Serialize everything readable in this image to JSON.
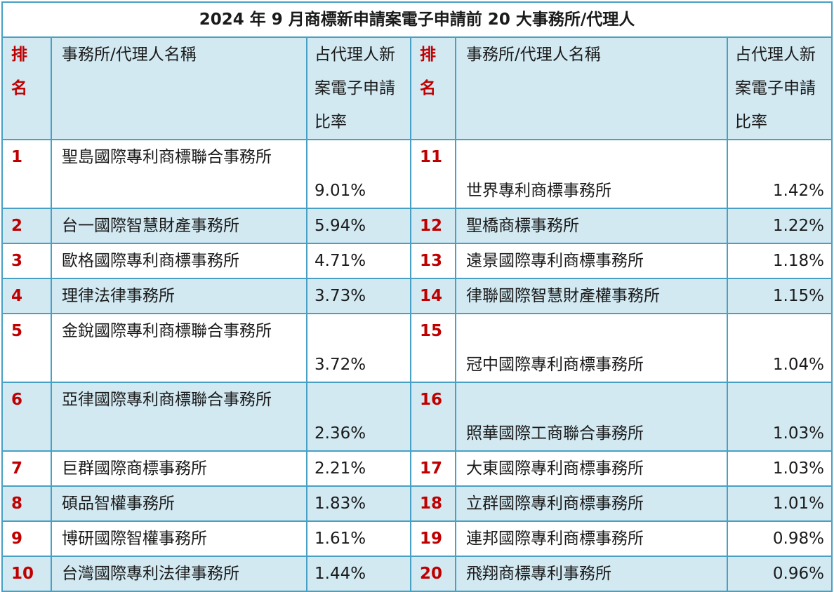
{
  "title": "2024 年 9 月商標新申請案電子申請前 20 大事務所/代理人",
  "headers": {
    "rank": "排名",
    "name": "事務所/代理人名稱",
    "ratio": "占代理人新案電子申請比率"
  },
  "left": [
    {
      "rank": "1",
      "name": "聖島國際專利商標聯合事務所",
      "pct": "9.01%"
    },
    {
      "rank": "2",
      "name": "台一國際智慧財產事務所",
      "pct": "5.94%"
    },
    {
      "rank": "3",
      "name": "歐格國際專利商標事務所",
      "pct": "4.71%"
    },
    {
      "rank": "4",
      "name": "理律法律事務所",
      "pct": "3.73%"
    },
    {
      "rank": "5",
      "name": "金銳國際專利商標聯合事務所",
      "pct": "3.72%"
    },
    {
      "rank": "6",
      "name": "亞律國際專利商標聯合事務所",
      "pct": "2.36%"
    },
    {
      "rank": "7",
      "name": "巨群國際商標事務所",
      "pct": "2.21%"
    },
    {
      "rank": "8",
      "name": "碩品智權事務所",
      "pct": "1.83%"
    },
    {
      "rank": "9",
      "name": "博研國際智權事務所",
      "pct": "1.61%"
    },
    {
      "rank": "10",
      "name": "台灣國際專利法律事務所",
      "pct": "1.44%"
    }
  ],
  "right": [
    {
      "rank": "11",
      "name": "世界專利商標事務所",
      "pct": "1.42%"
    },
    {
      "rank": "12",
      "name": "聖橋商標事務所",
      "pct": "1.22%"
    },
    {
      "rank": "13",
      "name": "遠景國際專利商標事務所",
      "pct": "1.18%"
    },
    {
      "rank": "14",
      "name": "律聯國際智慧財產權事務所",
      "pct": "1.15%"
    },
    {
      "rank": "15",
      "name": "冠中國際專利商標事務所",
      "pct": "1.04%"
    },
    {
      "rank": "16",
      "name": "照華國際工商聯合事務所",
      "pct": "1.03%"
    },
    {
      "rank": "17",
      "name": "大東國際專利商標事務所",
      "pct": "1.03%"
    },
    {
      "rank": "18",
      "name": "立群國際專利商標事務所",
      "pct": "1.01%"
    },
    {
      "rank": "19",
      "name": "連邦國際專利商標事務所",
      "pct": "0.98%"
    },
    {
      "rank": "20",
      "name": "飛翔商標專利事務所",
      "pct": "0.96%"
    }
  ]
}
